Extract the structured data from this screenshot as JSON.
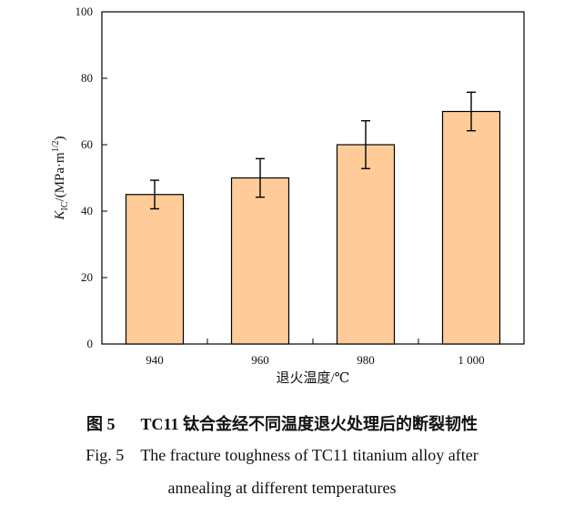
{
  "chart_data": {
    "type": "bar",
    "categories": [
      "940",
      "960",
      "980",
      "1 000"
    ],
    "values": [
      45,
      50,
      60,
      70
    ],
    "errors": [
      4.3,
      5.8,
      7.2,
      5.8
    ],
    "xlabel": "退火温度/℃",
    "ylabel_symbol": "K",
    "ylabel_sub": "IC",
    "ylabel_rest": "/(MPa·m",
    "ylabel_sup": "1/2",
    "ylabel_close": ")",
    "ylim": [
      0,
      100
    ],
    "yticks": [
      0,
      20,
      40,
      60,
      80,
      100
    ],
    "bar_color": "#FFCC99",
    "grid": false
  },
  "caption": {
    "cn_number": "图 5",
    "cn_text": "TC11 钛合金经不同温度退火处理后的断裂韧性",
    "en_number": "Fig. 5",
    "en_line1": "The fracture toughness of TC11 titanium alloy after",
    "en_line2": "annealing at different temperatures"
  }
}
